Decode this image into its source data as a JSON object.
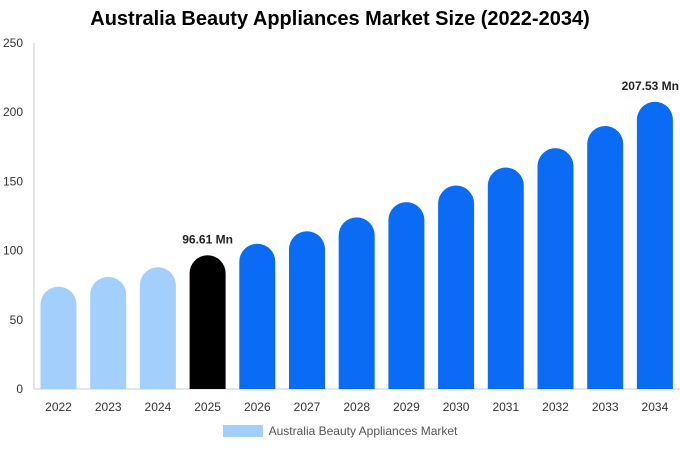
{
  "chart_data": {
    "type": "bar",
    "title": "Australia Beauty Appliances Market Size (2022-2034)",
    "categories": [
      "2022",
      "2023",
      "2024",
      "2025",
      "2026",
      "2027",
      "2028",
      "2029",
      "2030",
      "2031",
      "2032",
      "2033",
      "2034"
    ],
    "series": [
      {
        "name": "Australia Beauty Appliances Market",
        "values": [
          74,
          81,
          88,
          96.61,
          105,
          114,
          124,
          135,
          147,
          160,
          174,
          190,
          207.53
        ]
      }
    ],
    "data_labels": [
      {
        "category": "2025",
        "text": "96.61 Mn"
      },
      {
        "category": "2034",
        "text": "207.53 Mn"
      }
    ],
    "ylim": [
      0,
      250
    ],
    "yticks": [
      0,
      50,
      100,
      150,
      200,
      250
    ],
    "xlabel": "",
    "ylabel": "",
    "grid": false,
    "legend_position": "bottom-center",
    "colors": {
      "historical": "#a3cffc",
      "current": "#000000",
      "forecast": "#0a6cf5",
      "axis": "#cccccc"
    },
    "color_groups": {
      "historical": [
        "2022",
        "2023",
        "2024"
      ],
      "current": [
        "2025"
      ],
      "forecast": [
        "2026",
        "2027",
        "2028",
        "2029",
        "2030",
        "2031",
        "2032",
        "2033",
        "2034"
      ]
    }
  }
}
